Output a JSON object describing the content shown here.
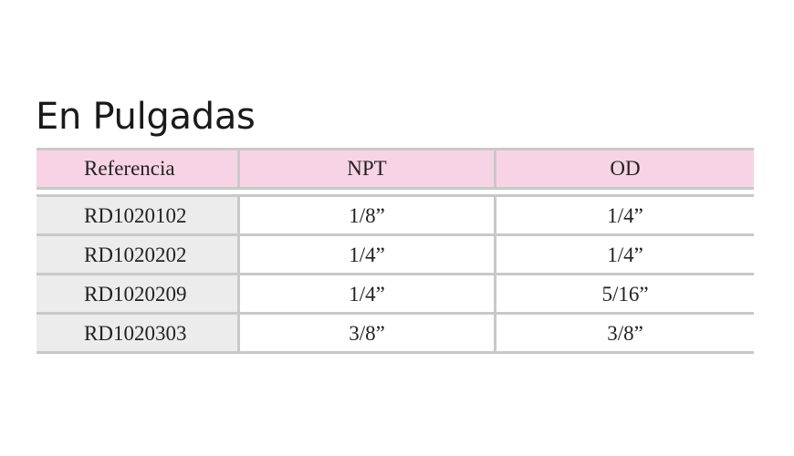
{
  "title": "En Pulgadas",
  "table": {
    "headers": [
      "Referencia",
      "NPT",
      "OD"
    ],
    "rows": [
      [
        "RD1020102",
        "1/8”",
        "1/4”"
      ],
      [
        "RD1020202",
        "1/4”",
        "1/4”"
      ],
      [
        "RD1020209",
        "1/4”",
        "5/16”"
      ],
      [
        "RD1020303",
        "3/8”",
        "3/8”"
      ]
    ],
    "colors": {
      "header_bg": "#f8d3e5",
      "reference_col_bg": "#ececec",
      "rule": "#c9c9c9"
    }
  }
}
